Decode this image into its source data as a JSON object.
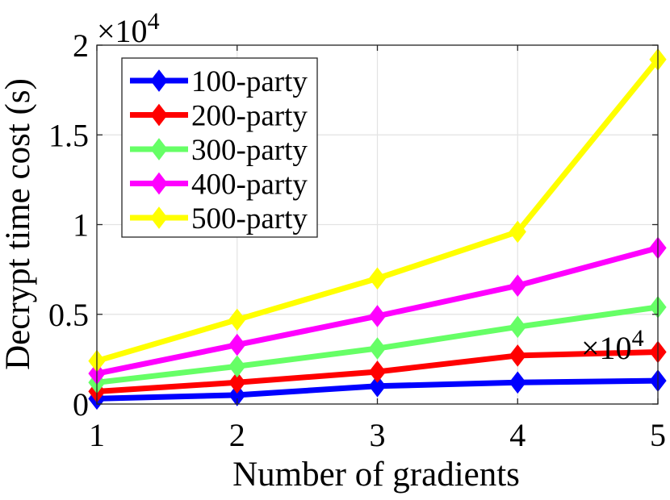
{
  "chart_data": {
    "type": "line",
    "xlabel": "Number of gradients",
    "ylabel": "Decrypt time cost (s)",
    "x_multiplier_label": "×10",
    "x_multiplier_exp": "4",
    "y_multiplier_label": "×10",
    "y_multiplier_exp": "4",
    "x": [
      1,
      2,
      3,
      4,
      5
    ],
    "x_tick_labels": [
      "1",
      "2",
      "3",
      "4",
      "5"
    ],
    "xlim": [
      1,
      5
    ],
    "ylim": [
      0,
      2
    ],
    "y_ticks": [
      0,
      0.5,
      1,
      1.5,
      2
    ],
    "y_tick_labels": [
      "0",
      "0.5",
      "1",
      "1.5",
      "2"
    ],
    "grid": true,
    "legend_position": "top-left",
    "marker": "diamond",
    "series": [
      {
        "name": "100-party",
        "color": "#0000ff",
        "values": [
          0.03,
          0.05,
          0.1,
          0.12,
          0.13
        ]
      },
      {
        "name": "200-party",
        "color": "#ff0000",
        "values": [
          0.07,
          0.12,
          0.18,
          0.27,
          0.29
        ]
      },
      {
        "name": "300-party",
        "color": "#66ff66",
        "values": [
          0.12,
          0.21,
          0.31,
          0.43,
          0.54
        ]
      },
      {
        "name": "400-party",
        "color": "#ff00ff",
        "values": [
          0.17,
          0.33,
          0.49,
          0.66,
          0.87
        ]
      },
      {
        "name": "500-party",
        "color": "#ffff00",
        "values": [
          0.24,
          0.47,
          0.7,
          0.96,
          1.92
        ]
      }
    ]
  }
}
